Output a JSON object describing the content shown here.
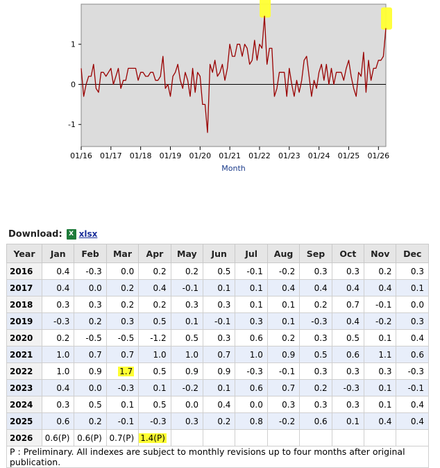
{
  "chart_data": {
    "type": "line",
    "xlabel": "Month",
    "ylabel": "",
    "x_tick_labels": [
      "01/16",
      "01/17",
      "01/18",
      "01/19",
      "01/20",
      "01/21",
      "01/22",
      "01/23",
      "01/24",
      "01/25",
      "01/26"
    ],
    "y_ticks": [
      -1,
      0,
      1
    ],
    "ylim": [
      -1.55,
      2.0
    ],
    "xlim": [
      "2016-01",
      "2026-04"
    ],
    "grid": false,
    "line_color": "#990000",
    "background": "#dcdcdc",
    "highlight_color": "#ffff33",
    "highlights": [
      {
        "x": "2022-03",
        "y": 1.7
      },
      {
        "x": "2026-04",
        "y": 1.4
      }
    ],
    "series": [
      {
        "x": [
          "2016-01",
          "2016-02",
          "2016-03",
          "2016-04",
          "2016-05",
          "2016-06",
          "2016-07",
          "2016-08",
          "2016-09",
          "2016-10",
          "2016-11",
          "2016-12",
          "2017-01",
          "2017-02",
          "2017-03",
          "2017-04",
          "2017-05",
          "2017-06",
          "2017-07",
          "2017-08",
          "2017-09",
          "2017-10",
          "2017-11",
          "2017-12",
          "2018-01",
          "2018-02",
          "2018-03",
          "2018-04",
          "2018-05",
          "2018-06",
          "2018-07",
          "2018-08",
          "2018-09",
          "2018-10",
          "2018-11",
          "2018-12",
          "2019-01",
          "2019-02",
          "2019-03",
          "2019-04",
          "2019-05",
          "2019-06",
          "2019-07",
          "2019-08",
          "2019-09",
          "2019-10",
          "2019-11",
          "2019-12",
          "2020-01",
          "2020-02",
          "2020-03",
          "2020-04",
          "2020-05",
          "2020-06",
          "2020-07",
          "2020-08",
          "2020-09",
          "2020-10",
          "2020-11",
          "2020-12",
          "2021-01",
          "2021-02",
          "2021-03",
          "2021-04",
          "2021-05",
          "2021-06",
          "2021-07",
          "2021-08",
          "2021-09",
          "2021-10",
          "2021-11",
          "2021-12",
          "2022-01",
          "2022-02",
          "2022-03",
          "2022-04",
          "2022-05",
          "2022-06",
          "2022-07",
          "2022-08",
          "2022-09",
          "2022-10",
          "2022-11",
          "2022-12",
          "2023-01",
          "2023-02",
          "2023-03",
          "2023-04",
          "2023-05",
          "2023-06",
          "2023-07",
          "2023-08",
          "2023-09",
          "2023-10",
          "2023-11",
          "2023-12",
          "2024-01",
          "2024-02",
          "2024-03",
          "2024-04",
          "2024-05",
          "2024-06",
          "2024-07",
          "2024-08",
          "2024-09",
          "2024-10",
          "2024-11",
          "2024-12",
          "2025-01",
          "2025-02",
          "2025-03",
          "2025-04",
          "2025-05",
          "2025-06",
          "2025-07",
          "2025-08",
          "2025-09",
          "2025-10",
          "2025-11",
          "2025-12",
          "2026-01",
          "2026-02",
          "2026-03",
          "2026-04"
        ],
        "values": [
          0.4,
          -0.3,
          0.0,
          0.2,
          0.2,
          0.5,
          -0.1,
          -0.2,
          0.3,
          0.3,
          0.2,
          0.3,
          0.4,
          0.0,
          0.2,
          0.4,
          -0.1,
          0.1,
          0.1,
          0.4,
          0.4,
          0.4,
          0.4,
          0.1,
          0.3,
          0.3,
          0.2,
          0.2,
          0.3,
          0.3,
          0.1,
          0.1,
          0.2,
          0.7,
          -0.1,
          0.0,
          -0.3,
          0.2,
          0.3,
          0.5,
          0.1,
          -0.1,
          0.3,
          0.1,
          -0.3,
          0.4,
          -0.2,
          0.3,
          0.2,
          -0.5,
          -0.5,
          -1.2,
          0.5,
          0.3,
          0.6,
          0.2,
          0.3,
          0.5,
          0.1,
          0.4,
          1.0,
          0.7,
          0.7,
          1.0,
          1.0,
          0.7,
          1.0,
          0.9,
          0.5,
          0.6,
          1.1,
          0.6,
          1.0,
          0.9,
          1.7,
          0.5,
          0.9,
          0.9,
          -0.3,
          -0.1,
          0.3,
          0.3,
          0.3,
          -0.3,
          0.4,
          0.0,
          -0.3,
          0.1,
          -0.2,
          0.1,
          0.6,
          0.7,
          0.2,
          -0.3,
          0.1,
          -0.1,
          0.3,
          0.5,
          0.1,
          0.5,
          0.0,
          0.4,
          0.0,
          0.3,
          0.3,
          0.3,
          0.1,
          0.4,
          0.6,
          0.2,
          -0.1,
          -0.3,
          0.3,
          0.2,
          0.8,
          -0.2,
          0.6,
          0.1,
          0.4,
          0.4,
          0.6,
          0.6,
          0.7,
          1.4
        ]
      }
    ]
  },
  "download": {
    "label": "Download:",
    "icon": "excel-icon",
    "icon_text": "X",
    "link_text": "xlsx"
  },
  "table": {
    "columns": [
      "Year",
      "Jan",
      "Feb",
      "Mar",
      "Apr",
      "May",
      "Jun",
      "Jul",
      "Aug",
      "Sep",
      "Oct",
      "Nov",
      "Dec"
    ],
    "rows": [
      [
        "2016",
        "0.4",
        "-0.3",
        "0.0",
        "0.2",
        "0.2",
        "0.5",
        "-0.1",
        "-0.2",
        "0.3",
        "0.3",
        "0.2",
        "0.3"
      ],
      [
        "2017",
        "0.4",
        "0.0",
        "0.2",
        "0.4",
        "-0.1",
        "0.1",
        "0.1",
        "0.4",
        "0.4",
        "0.4",
        "0.4",
        "0.1"
      ],
      [
        "2018",
        "0.3",
        "0.3",
        "0.2",
        "0.2",
        "0.3",
        "0.3",
        "0.1",
        "0.1",
        "0.2",
        "0.7",
        "-0.1",
        "0.0"
      ],
      [
        "2019",
        "-0.3",
        "0.2",
        "0.3",
        "0.5",
        "0.1",
        "-0.1",
        "0.3",
        "0.1",
        "-0.3",
        "0.4",
        "-0.2",
        "0.3"
      ],
      [
        "2020",
        "0.2",
        "-0.5",
        "-0.5",
        "-1.2",
        "0.5",
        "0.3",
        "0.6",
        "0.2",
        "0.3",
        "0.5",
        "0.1",
        "0.4"
      ],
      [
        "2021",
        "1.0",
        "0.7",
        "0.7",
        "1.0",
        "1.0",
        "0.7",
        "1.0",
        "0.9",
        "0.5",
        "0.6",
        "1.1",
        "0.6"
      ],
      [
        "2022",
        "1.0",
        "0.9",
        "1.7",
        "0.5",
        "0.9",
        "0.9",
        "-0.3",
        "-0.1",
        "0.3",
        "0.3",
        "0.3",
        "-0.3"
      ],
      [
        "2023",
        "0.4",
        "0.0",
        "-0.3",
        "0.1",
        "-0.2",
        "0.1",
        "0.6",
        "0.7",
        "0.2",
        "-0.3",
        "0.1",
        "-0.1"
      ],
      [
        "2024",
        "0.3",
        "0.5",
        "0.1",
        "0.5",
        "0.0",
        "0.4",
        "0.0",
        "0.3",
        "0.3",
        "0.3",
        "0.1",
        "0.4"
      ],
      [
        "2025",
        "0.6",
        "0.2",
        "-0.1",
        "-0.3",
        "0.3",
        "0.2",
        "0.8",
        "-0.2",
        "0.6",
        "0.1",
        "0.4",
        "0.4"
      ],
      [
        "2026",
        "0.6(P)",
        "0.6(P)",
        "0.7(P)",
        "1.4(P)",
        "",
        "",
        "",
        "",
        "",
        "",
        "",
        ""
      ]
    ],
    "highlighted_cells": [
      {
        "row": 6,
        "col": 3
      },
      {
        "row": 10,
        "col": 4
      }
    ],
    "footnote": "P : Preliminary. All indexes are subject to monthly revisions up to four months after original publication."
  }
}
